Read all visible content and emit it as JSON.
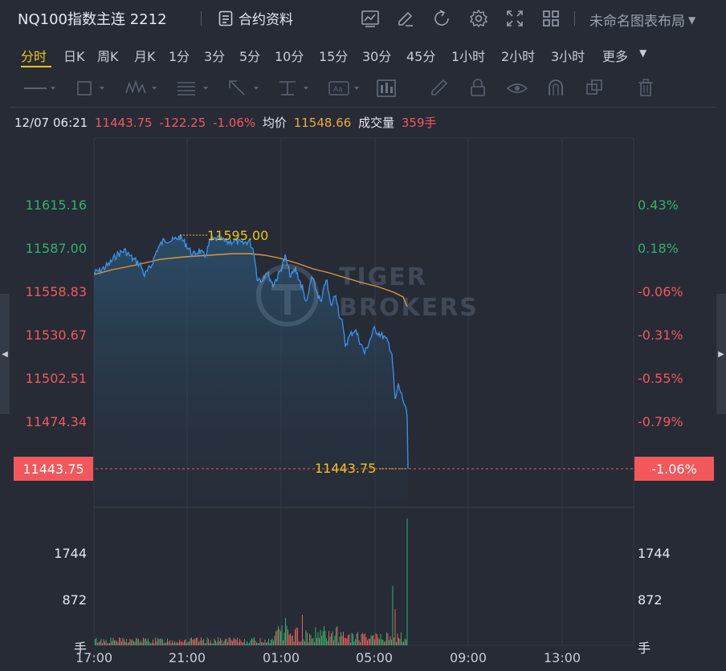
{
  "header": {
    "title": "NQ100指数主连 2212",
    "contract_info": "合约资料",
    "layout_menu": "未命名图表布局"
  },
  "timeframes": [
    "分时",
    "日K",
    "周K",
    "月K",
    "1分",
    "3分",
    "5分",
    "10分",
    "15分",
    "30分",
    "45分",
    "1小时",
    "2小时",
    "3小时",
    "更多"
  ],
  "active_timeframe": "分时",
  "quote": {
    "datetime": "12/07 06:21",
    "price": "11443.75",
    "change": "-122.25",
    "change_pct": "-1.06%",
    "avg_label": "均价",
    "avg_price": "11548.66",
    "volume_label": "成交量",
    "volume": "359手"
  },
  "watermark": {
    "line1": "TIGER",
    "line2": "BROKERS"
  },
  "chart_data": {
    "type": "line",
    "y_left_ticks": [
      "11615.16",
      "11587.00",
      "11558.83",
      "11530.67",
      "11502.51",
      "11474.34"
    ],
    "y_right_ticks": [
      "0.43%",
      "0.18%",
      "-0.06%",
      "-0.31%",
      "-0.55%",
      "-0.79%"
    ],
    "current_price_tag": "11443.75",
    "current_pct_tag": "-1.06%",
    "high_annotation": "11595.00",
    "last_annotation": "11443.75",
    "x_ticks": [
      "17:00",
      "21:00",
      "01:00",
      "05:00",
      "09:00",
      "13:00"
    ],
    "volume_ticks": [
      "1744",
      "872",
      "手"
    ],
    "volume_ticks_right": [
      "1744",
      "872",
      "手"
    ],
    "colors": {
      "price_line": "#3a8ee6",
      "avg_line": "#e0963a",
      "up": "#2fb36a",
      "down": "#f2585b",
      "highlight": "#f0c419"
    }
  }
}
